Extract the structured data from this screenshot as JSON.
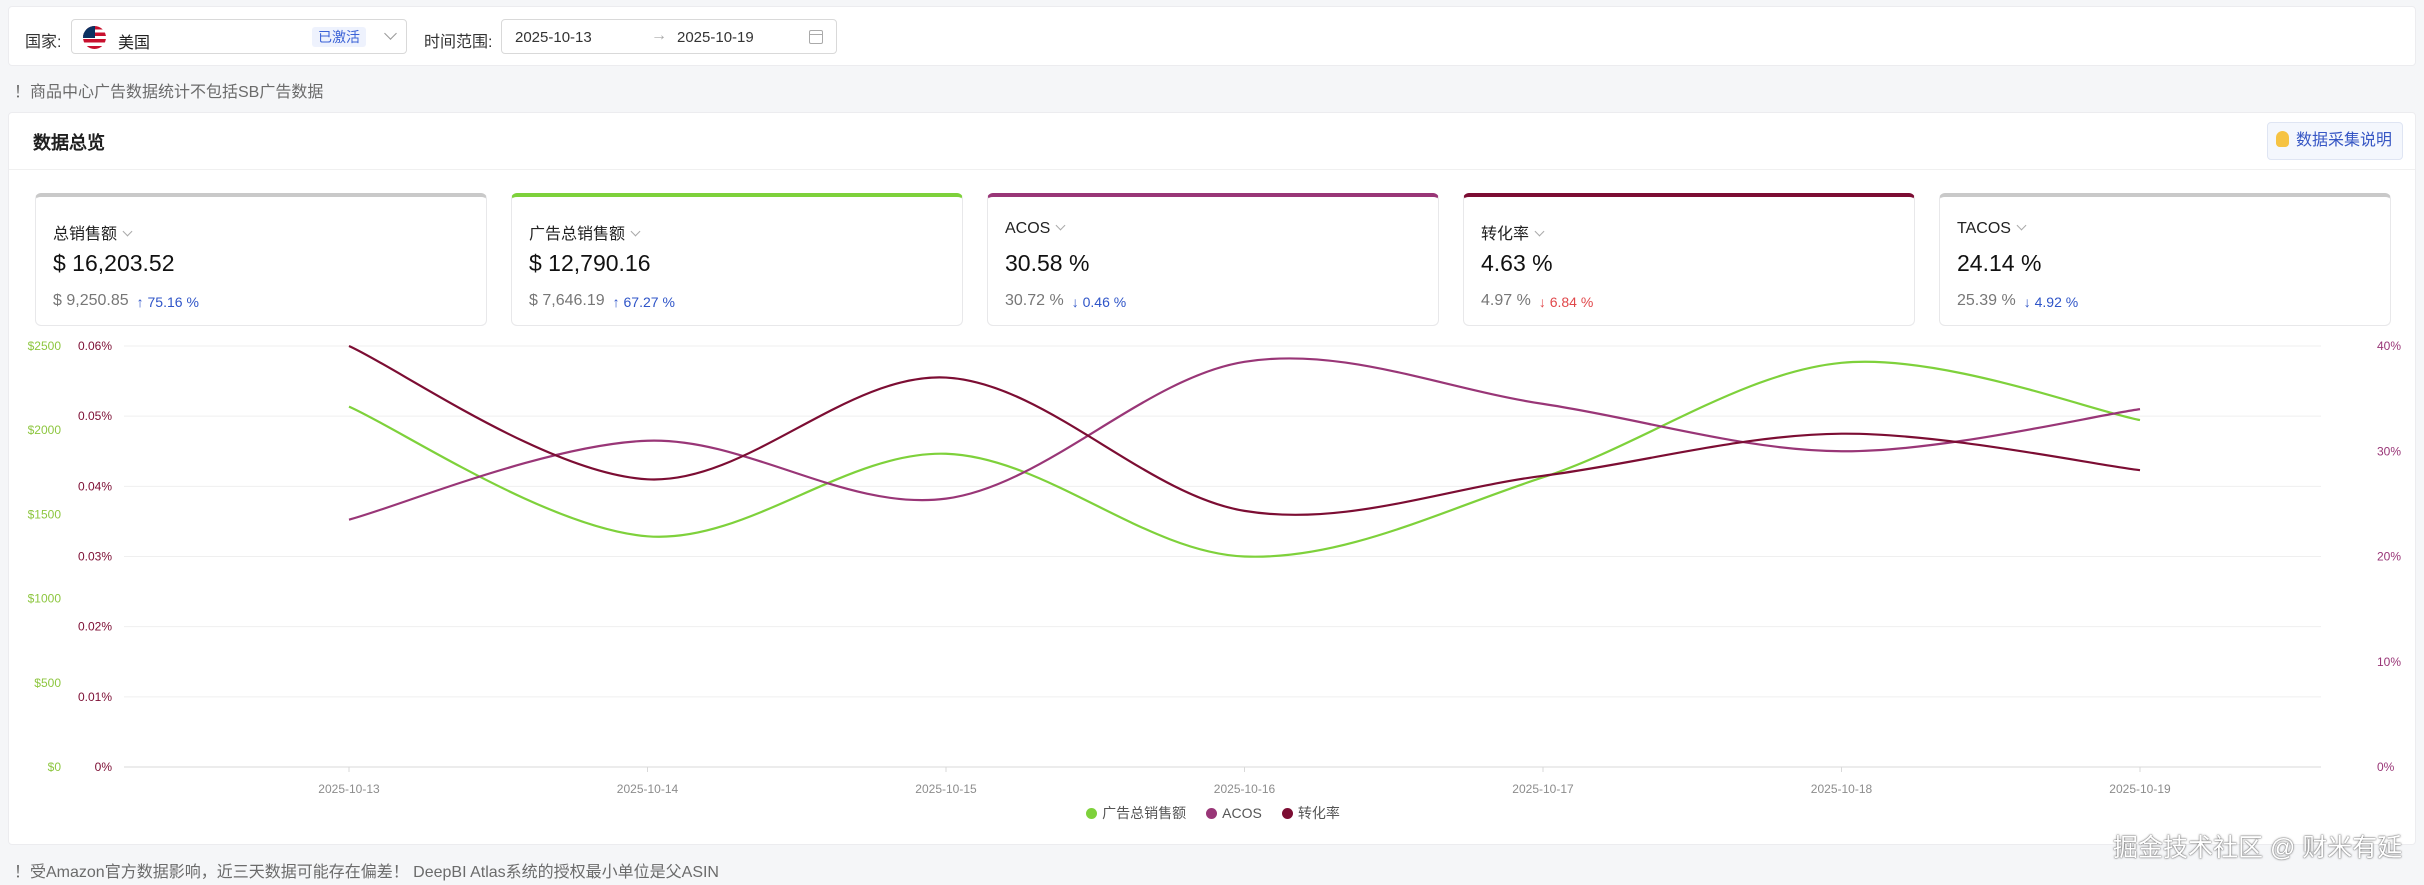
{
  "filter": {
    "country_label": "国家:",
    "country_name": "美国",
    "country_status": "已激活",
    "range_label": "时间范围:",
    "start_date": "2025-10-13",
    "end_date": "2025-10-19",
    "range_separator": "→"
  },
  "notice_top": "！商品中心广告数据统计不包括SB广告数据",
  "overview": {
    "title": "数据总览",
    "help_button": "数据采集说明"
  },
  "metrics": [
    {
      "label": "总销售额",
      "value": "$ 16,203.52",
      "prev": "$ 9,250.85",
      "arrow": "↑",
      "change": "75.16 %",
      "color": "#c9c9c9",
      "trend": "up"
    },
    {
      "label": "广告总销售额",
      "value": "$ 12,790.16",
      "prev": "$ 7,646.19",
      "arrow": "↑",
      "change": "67.27 %",
      "color": "#7ed13b",
      "trend": "up"
    },
    {
      "label": "ACOS",
      "value": "30.58 %",
      "prev": "30.72 %",
      "arrow": "↓",
      "change": "0.46 %",
      "color": "#993677",
      "trend": "down"
    },
    {
      "label": "转化率",
      "value": "4.63 %",
      "prev": "4.97 %",
      "arrow": "↓",
      "change": "6.84 %",
      "color": "#7c0d33",
      "trend": "neg"
    },
    {
      "label": "TACOS",
      "value": "24.14 %",
      "prev": "25.39 %",
      "arrow": "↓",
      "change": "4.92 %",
      "color": "#c9c9c9",
      "trend": "down"
    }
  ],
  "chart_data": {
    "type": "line",
    "categories": [
      "2025-10-13",
      "2025-10-14",
      "2025-10-15",
      "2025-10-16",
      "2025-10-17",
      "2025-10-18",
      "2025-10-19"
    ],
    "series": [
      {
        "name": "广告总销售额",
        "axis": "left-dollar",
        "color": "#7ed13b",
        "values": [
          2140,
          1370,
          1860,
          1250,
          1720,
          2400,
          2060
        ]
      },
      {
        "name": "ACOS",
        "axis": "right-percent",
        "color": "#993677",
        "values": [
          23.5,
          31.0,
          25.5,
          38.5,
          34.5,
          30.0,
          34.0
        ]
      },
      {
        "name": "转化率",
        "axis": "left-percent",
        "color": "#7c0d33",
        "values": [
          0.06,
          0.041,
          0.0555,
          0.0365,
          0.0415,
          0.0475,
          0.0423
        ]
      }
    ],
    "y_left_dollar": {
      "ticks": [
        "$0",
        "$500",
        "$1000",
        "$1500",
        "$2000",
        "$2500"
      ],
      "range": [
        0,
        2500
      ],
      "color": "#8dc63f"
    },
    "y_left_percent": {
      "ticks": [
        "0%",
        "0.01%",
        "0.02%",
        "0.03%",
        "0.04%",
        "0.05%",
        "0.06%"
      ],
      "range": [
        0,
        0.06
      ],
      "color": "#7c0d33"
    },
    "y_right_percent": {
      "ticks": [
        "0%",
        "10%",
        "20%",
        "30%",
        "40%"
      ],
      "range": [
        0,
        40
      ],
      "color": "#993677"
    },
    "grid": true,
    "legend": "bottom-center"
  },
  "notice_bottom": "！受Amazon官方数据影响，近三天数据可能存在偏差！ DeepBI Atlas系统的授权最小单位是父ASIN",
  "watermark": "掘金技术社区 @ 财米有延"
}
